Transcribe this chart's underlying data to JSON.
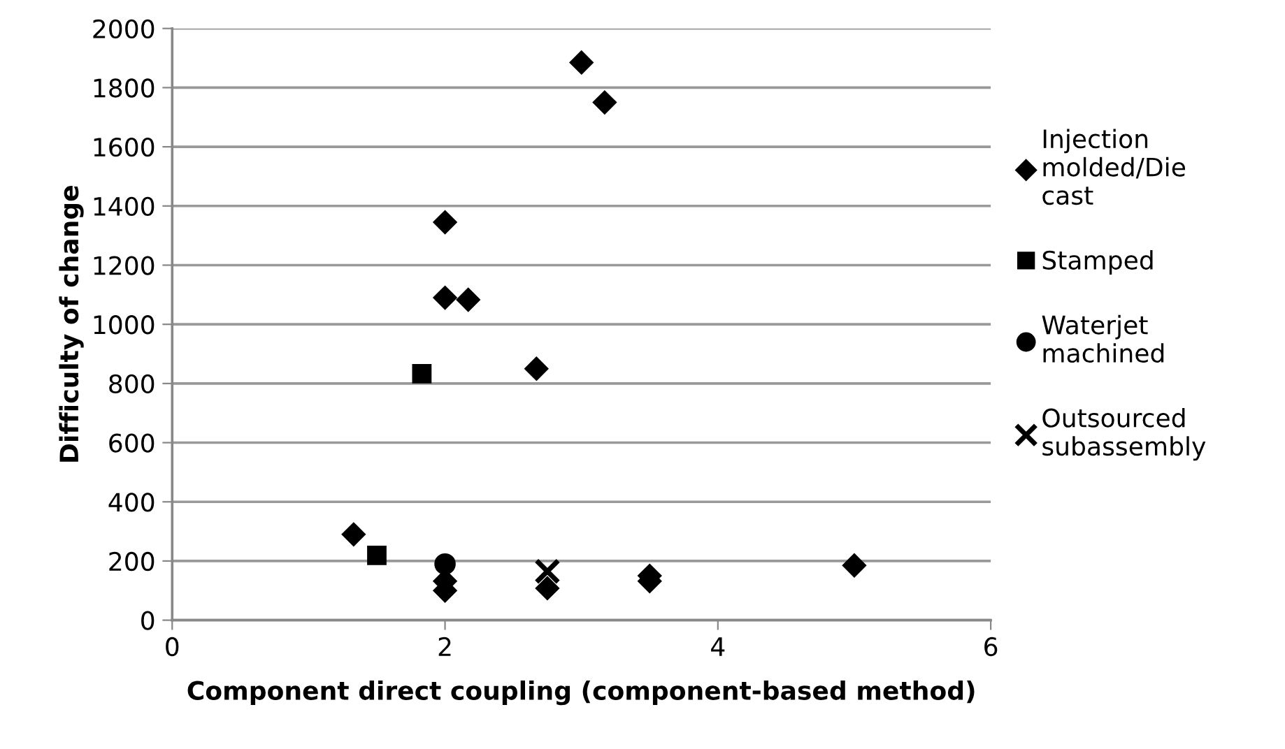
{
  "chart_data": {
    "type": "scatter",
    "xlabel": "Component direct coupling (component-based method)",
    "ylabel": "Difficulty of change",
    "xlim": [
      0,
      6
    ],
    "xticks": [
      0,
      2,
      4,
      6
    ],
    "ylim": [
      0,
      2000
    ],
    "yticks": [
      0,
      200,
      400,
      600,
      800,
      1000,
      1200,
      1400,
      1600,
      1800,
      2000
    ],
    "grid": "y",
    "legend": "right",
    "series": [
      {
        "name": "Injection molded/Die cast",
        "color": "#000000",
        "marker": "diamond",
        "x": [
          3,
          3.17,
          2,
          2,
          2.17,
          2.67,
          1.33,
          2,
          2,
          2.75,
          3.5,
          3.5,
          5
        ],
        "values": [
          1885,
          1750,
          1345,
          1090,
          1083,
          850,
          290,
          132,
          100,
          108,
          150,
          132,
          185
        ]
      },
      {
        "name": "Stamped",
        "color": "#000000",
        "marker": "square",
        "x": [
          1.83,
          1.5
        ],
        "values": [
          833,
          219
        ]
      },
      {
        "name": "Waterjet machined",
        "color": "#000000",
        "marker": "circle",
        "x": [
          2
        ],
        "values": [
          190
        ]
      },
      {
        "name": "Outsourced subassembly",
        "color": "#000000",
        "marker": "cross",
        "x": [
          2.75
        ],
        "values": [
          165
        ]
      }
    ]
  }
}
